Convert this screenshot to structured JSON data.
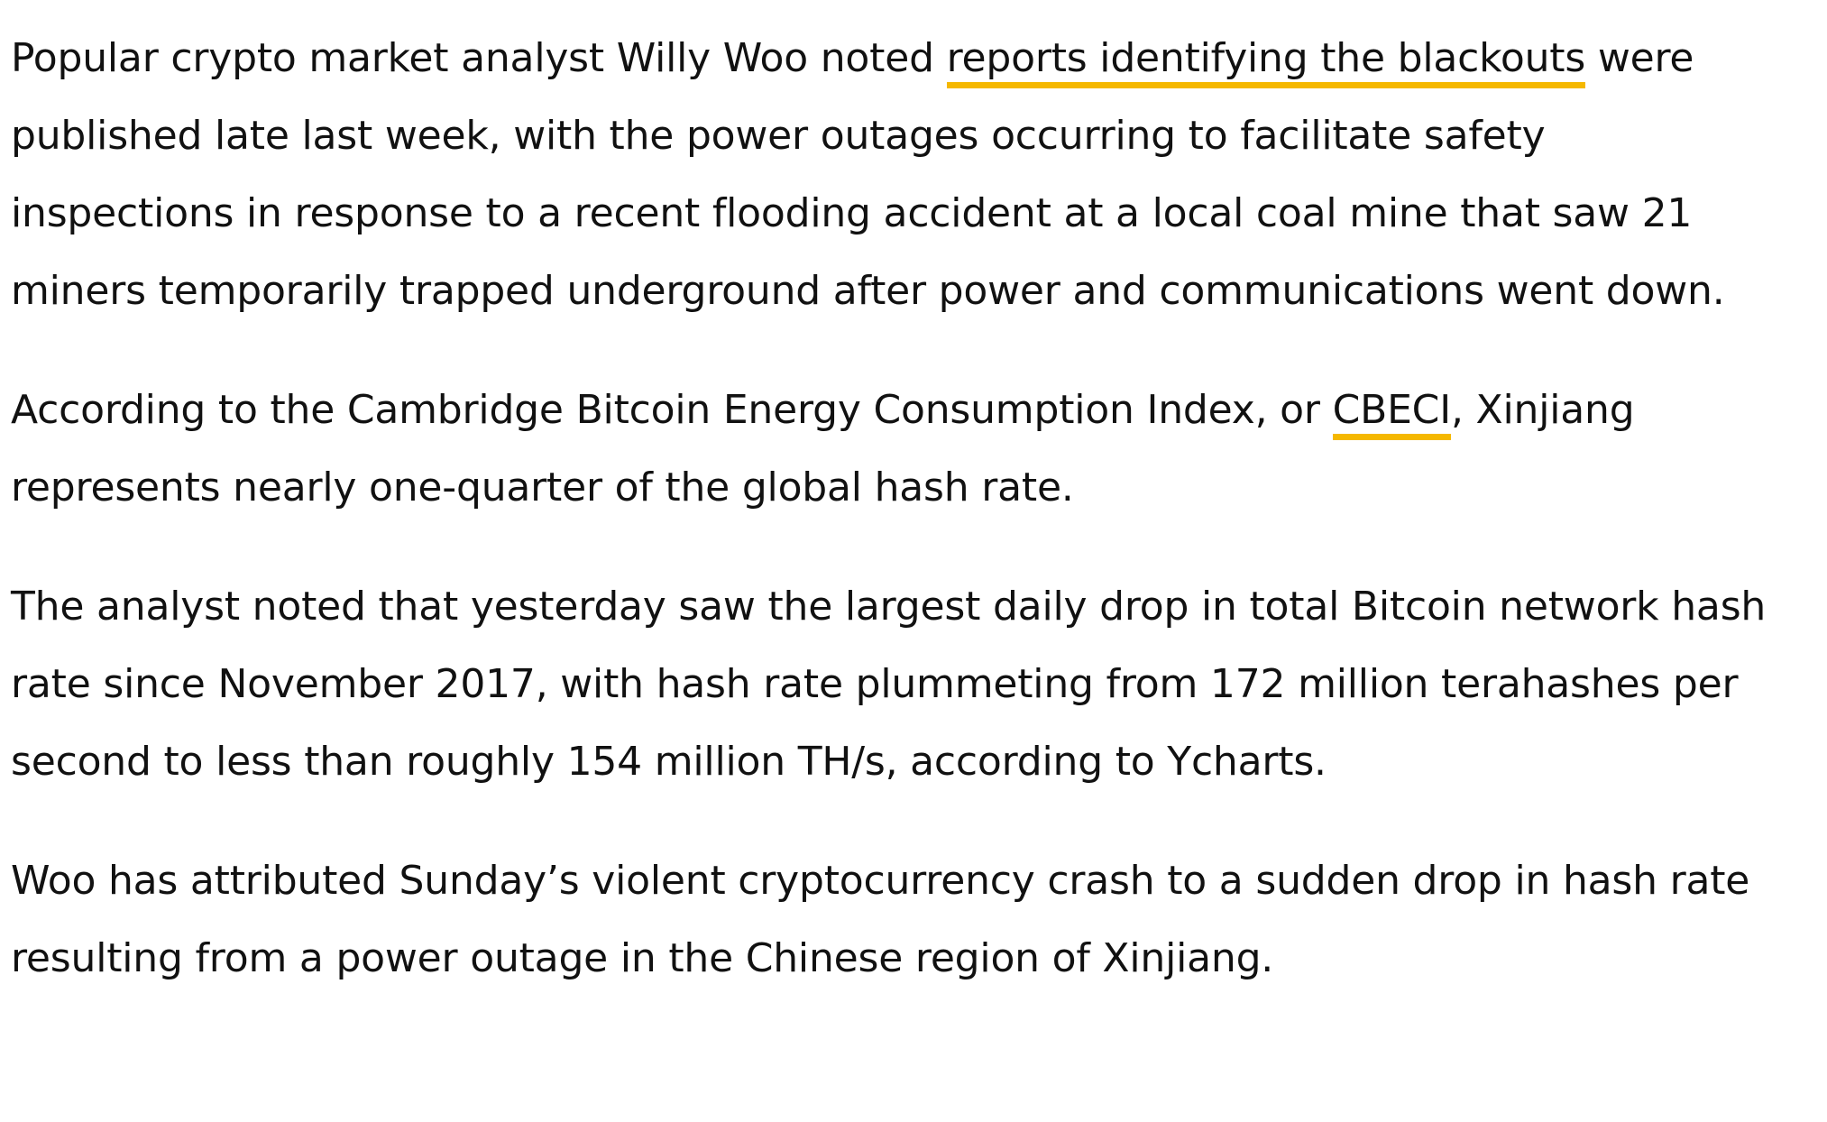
{
  "theme": {
    "accent": "#F5B800",
    "text": "#111111",
    "background": "#FFFFFF"
  },
  "article": {
    "p1": {
      "before_link": "Popular crypto market analyst Willy Woo noted ",
      "link_text": "reports identifying the blackouts",
      "after_link": " were published late last week, with the power outages occurring to facilitate safety inspections in response to a recent flooding accident at a local coal mine that saw 21 miners temporarily trapped underground after power and communications went down."
    },
    "p2": {
      "before_link": "According to the Cambridge Bitcoin Energy Consumption Index, or ",
      "link_text": "CBECI",
      "after_link": ", Xinjiang represents nearly one-quarter of the global hash rate."
    },
    "p3": {
      "text": "The analyst noted that yesterday saw the largest daily drop in total Bitcoin network hash rate since November 2017, with hash rate plummeting from 172 million terahashes per second to less than roughly 154 million TH/s, according to Ycharts."
    },
    "p4": {
      "text": "Woo has attributed Sunday’s violent cryptocurrency crash to a sudden drop in hash rate resulting from a power outage in the Chinese region of Xinjiang."
    }
  }
}
